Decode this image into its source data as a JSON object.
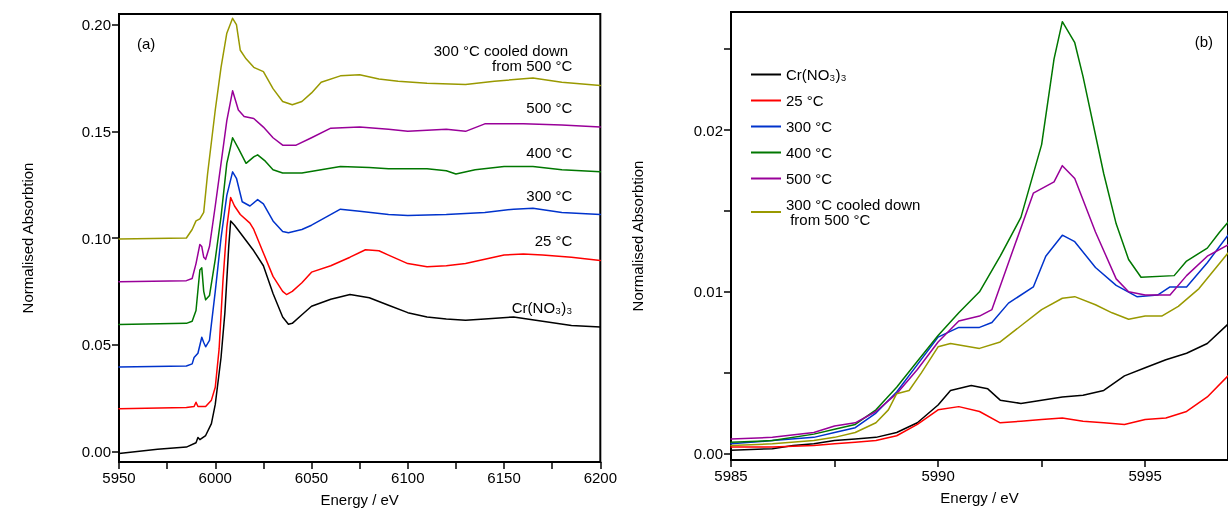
{
  "chart_data": [
    {
      "type": "line",
      "xlabel": "Energy / eV",
      "ylabel": "Normalised Absorbtion",
      "annotations": [
        "(a)"
      ],
      "xlim": [
        5950,
        6200
      ],
      "xticks": [
        5950,
        {
          "value": 5975,
          "label": null
        },
        6000,
        {
          "value": 6025,
          "label": null
        },
        6050,
        {
          "value": 6075,
          "label": null
        },
        6100,
        {
          "value": 6125,
          "label": null
        },
        6150,
        {
          "value": 6175,
          "label": null
        },
        6200
      ],
      "ylim": [
        -0.005,
        0.205
      ],
      "yticks": [
        {
          "value": 0,
          "label": "0.00"
        },
        0.05,
        {
          "value": 0.1,
          "label": "0.10"
        },
        0.15,
        {
          "value": 0.2,
          "label": "0.20"
        }
      ],
      "grid": false,
      "legend": false,
      "series": [
        {
          "name": "Cr(NO₃)₃",
          "color": "#000000",
          "x": [
            5950,
            5970,
            5985,
            5990,
            5991,
            5992,
            5995,
            5998,
            6000,
            6003,
            6005,
            6007,
            6008,
            6010,
            6015,
            6020,
            6025,
            6030,
            6035,
            6038,
            6040,
            6045,
            6050,
            6060,
            6070,
            6080,
            6090,
            6100,
            6110,
            6120,
            6130,
            6140,
            6155,
            6170,
            6185,
            6200
          ],
          "values": [
            -0.001,
            0.001,
            0.002,
            0.004,
            0.0065,
            0.0055,
            0.0074,
            0.013,
            0.022,
            0.044,
            0.065,
            0.096,
            0.108,
            0.106,
            0.1,
            0.094,
            0.087,
            0.074,
            0.063,
            0.0596,
            0.06,
            0.064,
            0.068,
            0.0713,
            0.0735,
            0.072,
            0.0685,
            0.065,
            0.063,
            0.062,
            0.0615,
            0.062,
            0.063,
            0.061,
            0.059,
            0.0583
          ]
        },
        {
          "name": "25 °C",
          "color": "#ff0000",
          "x": [
            5950,
            5985,
            5989,
            5990,
            5991,
            5995,
            5998,
            6000,
            6002,
            6004,
            6006,
            6008,
            6010,
            6013,
            6018,
            6020,
            6025,
            6030,
            6035,
            6037,
            6040,
            6045,
            6050,
            6060,
            6070,
            6078,
            6085,
            6090,
            6100,
            6110,
            6120,
            6130,
            6140,
            6150,
            6160,
            6170,
            6185,
            6200
          ],
          "values": [
            0.02,
            0.0205,
            0.021,
            0.023,
            0.021,
            0.021,
            0.024,
            0.03,
            0.048,
            0.08,
            0.105,
            0.119,
            0.115,
            0.111,
            0.107,
            0.104,
            0.093,
            0.082,
            0.075,
            0.0735,
            0.075,
            0.079,
            0.084,
            0.087,
            0.091,
            0.0945,
            0.094,
            0.092,
            0.088,
            0.0865,
            0.087,
            0.088,
            0.09,
            0.092,
            0.0925,
            0.092,
            0.091,
            0.0895
          ]
        },
        {
          "name": "300 °C",
          "color": "#0033cc",
          "x": [
            5950,
            5985,
            5988,
            5989,
            5991,
            5993,
            5994,
            5995,
            5997,
            6000,
            6003,
            6006,
            6009,
            6011,
            6014,
            6018,
            6022,
            6025,
            6030,
            6035,
            6038,
            6045,
            6050,
            6058,
            6065,
            6075,
            6090,
            6100,
            6120,
            6140,
            6155,
            6165,
            6180,
            6200
          ],
          "values": [
            0.0395,
            0.04,
            0.041,
            0.044,
            0.046,
            0.0535,
            0.051,
            0.049,
            0.052,
            0.075,
            0.1,
            0.12,
            0.131,
            0.128,
            0.117,
            0.115,
            0.118,
            0.116,
            0.108,
            0.103,
            0.1025,
            0.104,
            0.106,
            0.11,
            0.1135,
            0.1125,
            0.111,
            0.1105,
            0.111,
            0.112,
            0.1135,
            0.114,
            0.112,
            0.111
          ]
        },
        {
          "name": "400 °C",
          "color": "#007700",
          "x": [
            5950,
            5985,
            5988,
            5990,
            5992,
            5993,
            5994,
            5995,
            5997,
            6000,
            6003,
            6006,
            6009,
            6012,
            6016,
            6020,
            6022,
            6026,
            6030,
            6035,
            6045,
            6055,
            6065,
            6080,
            6090,
            6110,
            6120,
            6125,
            6135,
            6150,
            6165,
            6180,
            6200
          ],
          "values": [
            0.0595,
            0.06,
            0.061,
            0.066,
            0.085,
            0.086,
            0.075,
            0.071,
            0.073,
            0.09,
            0.11,
            0.135,
            0.147,
            0.142,
            0.135,
            0.138,
            0.139,
            0.136,
            0.132,
            0.1305,
            0.1305,
            0.132,
            0.1335,
            0.133,
            0.1325,
            0.1325,
            0.1315,
            0.13,
            0.132,
            0.1335,
            0.1335,
            0.132,
            0.131
          ]
        },
        {
          "name": "500 °C",
          "color": "#990099",
          "x": [
            5950,
            5985,
            5988,
            5990,
            5992,
            5993,
            5994,
            5995,
            5997,
            6000,
            6003,
            6006,
            6009,
            6012,
            6015,
            6020,
            6025,
            6030,
            6035,
            6042,
            6050,
            6060,
            6075,
            6090,
            6100,
            6120,
            6130,
            6140,
            6160,
            6180,
            6200
          ],
          "values": [
            0.0795,
            0.08,
            0.081,
            0.088,
            0.097,
            0.096,
            0.091,
            0.09,
            0.096,
            0.115,
            0.135,
            0.155,
            0.169,
            0.16,
            0.157,
            0.156,
            0.152,
            0.147,
            0.1435,
            0.1435,
            0.147,
            0.1515,
            0.152,
            0.151,
            0.15,
            0.151,
            0.15,
            0.1535,
            0.1535,
            0.153,
            0.152
          ]
        },
        {
          "name": "300 °C cooled down from 500 °C",
          "color": "#999900",
          "x": [
            5950,
            5985,
            5988,
            5990,
            5992,
            5994,
            5996,
            6000,
            6003,
            6006,
            6009,
            6011,
            6013,
            6016,
            6020,
            6025,
            6030,
            6035,
            6040,
            6045,
            6050,
            6055,
            6065,
            6075,
            6085,
            6095,
            6110,
            6130,
            6145,
            6165,
            6180,
            6200
          ],
          "values": [
            0.0995,
            0.1,
            0.104,
            0.108,
            0.109,
            0.112,
            0.13,
            0.16,
            0.18,
            0.196,
            0.203,
            0.2,
            0.188,
            0.184,
            0.18,
            0.178,
            0.17,
            0.164,
            0.1625,
            0.164,
            0.168,
            0.173,
            0.176,
            0.1765,
            0.1745,
            0.1735,
            0.1725,
            0.172,
            0.1735,
            0.175,
            0.173,
            0.1715
          ]
        }
      ]
    },
    {
      "type": "line",
      "xlabel": "Energy / eV",
      "ylabel": "Normalised Absorbtion",
      "annotations": [
        "(b)"
      ],
      "xlim": [
        5985,
        5997
      ],
      "xticks": [
        5985,
        {
          "value": 5987.5,
          "label": null
        },
        5990,
        {
          "value": 5992.5,
          "label": null
        },
        5995
      ],
      "ylim": [
        -0.0004,
        0.0273
      ],
      "yticks": [
        {
          "value": 0,
          "label": "0.00"
        },
        {
          "value": 0.005,
          "label": null
        },
        0.01,
        {
          "value": 0.015,
          "label": null
        },
        0.02,
        {
          "value": 0.025,
          "label": null
        }
      ],
      "grid": false,
      "legend": "top left",
      "series": [
        {
          "name": "Cr(NO₃)₃",
          "color": "#000000",
          "x": [
            5985,
            5986,
            5986.5,
            5987,
            5987.5,
            5988,
            5988.5,
            5989,
            5989.5,
            5990,
            5990.3,
            5990.8,
            5991.2,
            5991.5,
            5992,
            5992.5,
            5993,
            5993.5,
            5994,
            5994.5,
            5995,
            5995.5,
            5996,
            5996.5,
            5997
          ],
          "values": [
            0.0002,
            0.0003,
            0.0005,
            0.0006,
            0.0008,
            0.0009,
            0.001,
            0.0013,
            0.0019,
            0.003,
            0.0039,
            0.0042,
            0.004,
            0.0033,
            0.0031,
            0.0033,
            0.0035,
            0.0036,
            0.0039,
            0.0048,
            0.0053,
            0.0058,
            0.0062,
            0.0068,
            0.008
          ]
        },
        {
          "name": "25 °C",
          "color": "#ff0000",
          "x": [
            5985,
            5986,
            5987,
            5987.5,
            5988,
            5988.5,
            5989,
            5989.5,
            5990,
            5990.5,
            5991,
            5991.5,
            5992,
            5992.5,
            5993,
            5993.5,
            5994,
            5994.5,
            5995,
            5995.5,
            5996,
            5996.5,
            5997
          ],
          "values": [
            0.0004,
            0.0004,
            0.0005,
            0.0006,
            0.0007,
            0.0008,
            0.0011,
            0.0018,
            0.0027,
            0.0029,
            0.0026,
            0.0019,
            0.002,
            0.0021,
            0.0022,
            0.002,
            0.0019,
            0.0018,
            0.0021,
            0.0022,
            0.0026,
            0.0035,
            0.0048
          ]
        },
        {
          "name": "300 °C",
          "color": "#0033cc",
          "x": [
            5985,
            5986,
            5987,
            5987.5,
            5988,
            5988.5,
            5989,
            5989.5,
            5990,
            5990.5,
            5991,
            5991.3,
            5991.7,
            5992.3,
            5992.6,
            5993,
            5993.3,
            5993.8,
            5994.3,
            5994.8,
            5995.3,
            5995.6,
            5996,
            5996.5,
            5997
          ],
          "values": [
            0.0006,
            0.0008,
            0.001,
            0.0013,
            0.0016,
            0.0025,
            0.0038,
            0.0055,
            0.0072,
            0.0078,
            0.0078,
            0.0081,
            0.0093,
            0.0103,
            0.0122,
            0.0135,
            0.0131,
            0.0115,
            0.0104,
            0.0097,
            0.0098,
            0.0103,
            0.0103,
            0.0118,
            0.0135
          ]
        },
        {
          "name": "400 °C",
          "color": "#007700",
          "x": [
            5985,
            5986,
            5987,
            5987.5,
            5988,
            5988.5,
            5989,
            5989.5,
            5990,
            5990.5,
            5991,
            5991.5,
            5992,
            5992.5,
            5992.8,
            5993,
            5993.3,
            5993.5,
            5994,
            5994.3,
            5994.6,
            5994.9,
            5995.7,
            5996,
            5996.5,
            5996.8,
            5997
          ],
          "values": [
            0.0007,
            0.0008,
            0.0012,
            0.0015,
            0.0018,
            0.0027,
            0.0041,
            0.0057,
            0.0073,
            0.0087,
            0.01,
            0.0122,
            0.0146,
            0.0191,
            0.0244,
            0.0267,
            0.0254,
            0.0233,
            0.0173,
            0.0142,
            0.012,
            0.0109,
            0.011,
            0.0119,
            0.0127,
            0.0137,
            0.0143
          ]
        },
        {
          "name": "500 °C",
          "color": "#990099",
          "x": [
            5985,
            5986,
            5987,
            5987.5,
            5988,
            5988.5,
            5989,
            5989.5,
            5990,
            5990.5,
            5991,
            5991.3,
            5991.7,
            5992.3,
            5992.8,
            5993,
            5993.3,
            5993.8,
            5994.3,
            5994.6,
            5995,
            5995.6,
            5996,
            5996.5,
            5997
          ],
          "values": [
            0.0009,
            0.001,
            0.0013,
            0.0017,
            0.0019,
            0.0026,
            0.0037,
            0.0052,
            0.0069,
            0.0082,
            0.0085,
            0.0089,
            0.0118,
            0.0161,
            0.0168,
            0.0178,
            0.017,
            0.0137,
            0.0108,
            0.01,
            0.0098,
            0.0098,
            0.011,
            0.0122,
            0.0129
          ]
        },
        {
          "name": "300 °C cooled down from 500 °C",
          "color": "#999900",
          "x": [
            5985,
            5986,
            5987,
            5987.5,
            5988,
            5988.5,
            5988.8,
            5989,
            5989.3,
            5989.6,
            5990,
            5990.3,
            5991,
            5991.5,
            5992,
            5992.5,
            5993,
            5993.3,
            5993.8,
            5994.2,
            5994.6,
            5995,
            5995.4,
            5995.8,
            5996.3,
            5997
          ],
          "values": [
            0.0005,
            0.0006,
            0.0008,
            0.001,
            0.0013,
            0.0019,
            0.0027,
            0.0037,
            0.0039,
            0.005,
            0.0066,
            0.0068,
            0.0065,
            0.0069,
            0.0079,
            0.0089,
            0.0096,
            0.0097,
            0.0092,
            0.0087,
            0.0083,
            0.0085,
            0.0085,
            0.0091,
            0.0102,
            0.0124
          ]
        }
      ]
    }
  ]
}
